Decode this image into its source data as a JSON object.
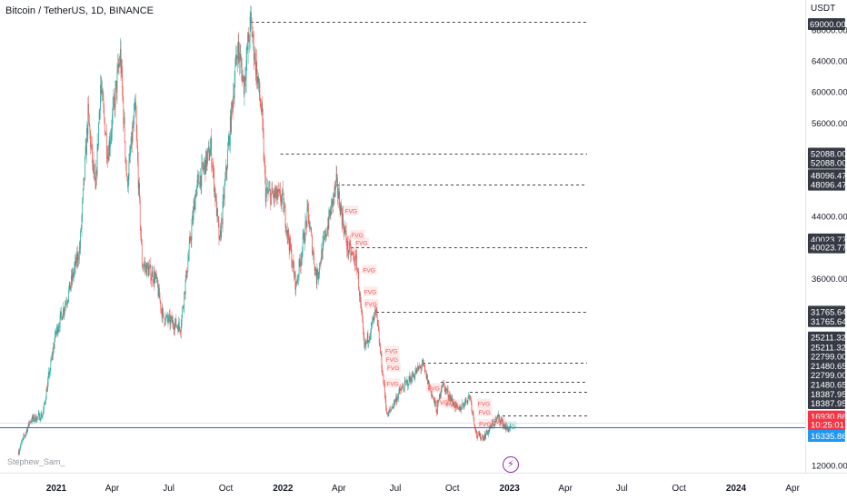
{
  "header": {
    "title": "Bitcoin / TetherUS, 1D, BINANCE",
    "currency": "USDT"
  },
  "watermark": "Stephew_Sam_",
  "colors": {
    "up": "#26a69a",
    "down": "#ef5350",
    "level_line": "#434651",
    "price_line": "#2962ff",
    "fvg_up": "#26a69a",
    "fvg_down": "#ef5350",
    "axis_text": "#131722",
    "badge_dark": "#363a45",
    "badge_red": "#f23645",
    "badge_blue": "#2196f3",
    "bg": "#ffffff"
  },
  "chart_data": {
    "type": "candlestick",
    "x_ticks": [
      {
        "label": "2021",
        "date": "2021-01-01",
        "bold": true
      },
      {
        "label": "Apr",
        "date": "2021-04-01",
        "bold": false
      },
      {
        "label": "Jul",
        "date": "2021-07-01",
        "bold": false
      },
      {
        "label": "Oct",
        "date": "2021-10-01",
        "bold": false
      },
      {
        "label": "2022",
        "date": "2022-01-01",
        "bold": true
      },
      {
        "label": "Apr",
        "date": "2022-04-01",
        "bold": false
      },
      {
        "label": "Jul",
        "date": "2022-07-01",
        "bold": false
      },
      {
        "label": "Oct",
        "date": "2022-10-01",
        "bold": false
      },
      {
        "label": "2023",
        "date": "2023-01-01",
        "bold": true
      },
      {
        "label": "Apr",
        "date": "2023-04-01",
        "bold": false
      },
      {
        "label": "Jul",
        "date": "2023-07-01",
        "bold": false
      },
      {
        "label": "Oct",
        "date": "2023-10-01",
        "bold": false
      },
      {
        "label": "2024",
        "date": "2024-01-01",
        "bold": true
      },
      {
        "label": "Apr",
        "date": "2024-04-01",
        "bold": false
      }
    ],
    "y_ticks": [
      "12000.00",
      "36000.00",
      "44000.00",
      "56000.00",
      "60000.00",
      "64000.00",
      "68000.00"
    ],
    "price_path": [
      [
        "2020-11-01",
        13800
      ],
      [
        "2020-11-20",
        17800
      ],
      [
        "2020-12-10",
        18500
      ],
      [
        "2020-12-31",
        29000
      ],
      [
        "2021-01-20",
        34000
      ],
      [
        "2021-02-08",
        40000
      ],
      [
        "2021-02-21",
        57000
      ],
      [
        "2021-03-05",
        47000
      ],
      [
        "2021-03-13",
        61000
      ],
      [
        "2021-03-25",
        52000
      ],
      [
        "2021-04-14",
        64800
      ],
      [
        "2021-04-25",
        48000
      ],
      [
        "2021-05-08",
        58000
      ],
      [
        "2021-05-19",
        38000
      ],
      [
        "2021-06-10",
        36000
      ],
      [
        "2021-06-22",
        31000
      ],
      [
        "2021-07-20",
        29800
      ],
      [
        "2021-08-14",
        47500
      ],
      [
        "2021-09-07",
        52800
      ],
      [
        "2021-09-21",
        40500
      ],
      [
        "2021-10-20",
        66000
      ],
      [
        "2021-10-30",
        61000
      ],
      [
        "2021-11-10",
        69000
      ],
      [
        "2021-11-28",
        57000
      ],
      [
        "2021-12-04",
        47000
      ],
      [
        "2021-12-31",
        46300
      ],
      [
        "2022-01-22",
        35000
      ],
      [
        "2022-02-10",
        44500
      ],
      [
        "2022-02-24",
        36000
      ],
      [
        "2022-03-28",
        48200
      ],
      [
        "2022-04-15",
        40000
      ],
      [
        "2022-04-30",
        38000
      ],
      [
        "2022-05-12",
        27000
      ],
      [
        "2022-05-31",
        31700
      ],
      [
        "2022-06-18",
        18300
      ],
      [
        "2022-07-08",
        21500
      ],
      [
        "2022-08-14",
        25000
      ],
      [
        "2022-09-06",
        19000
      ],
      [
        "2022-09-14",
        22600
      ],
      [
        "2022-10-10",
        19000
      ],
      [
        "2022-10-29",
        21000
      ],
      [
        "2022-11-09",
        15800
      ],
      [
        "2022-11-21",
        15700
      ],
      [
        "2022-12-14",
        18200
      ],
      [
        "2022-12-28",
        16600
      ],
      [
        "2023-01-02",
        16900
      ]
    ],
    "levels": [
      {
        "price": "69000.00",
        "start": "2021-11-10"
      },
      {
        "price": "52088.00",
        "start": "2021-12-28"
      },
      {
        "price": "48096.47",
        "start": "2022-03-28"
      },
      {
        "price": "40023.77",
        "start": "2022-04-20"
      },
      {
        "price": "31765.64",
        "start": "2022-05-31"
      },
      {
        "price": "25211.32",
        "start": "2022-08-14"
      },
      {
        "price": "22799.00",
        "start": "2022-09-12"
      },
      {
        "price": "21480.65",
        "start": "2022-10-29"
      },
      {
        "price": "18387.95",
        "start": "2022-12-12"
      }
    ],
    "fvg_labels": [
      {
        "text": "FVG",
        "date": "2022-04-08",
        "price": 44800,
        "dir": "down"
      },
      {
        "text": "FVG",
        "date": "2022-04-18",
        "price": 41700,
        "dir": "down"
      },
      {
        "text": "FVG",
        "date": "2022-04-25",
        "price": 40700,
        "dir": "down"
      },
      {
        "text": "FVG",
        "date": "2022-05-07",
        "price": 37200,
        "dir": "down"
      },
      {
        "text": "FVG",
        "date": "2022-05-09",
        "price": 34400,
        "dir": "down"
      },
      {
        "text": "FVG",
        "date": "2022-05-10",
        "price": 32800,
        "dir": "down"
      },
      {
        "text": "FVG",
        "date": "2022-06-12",
        "price": 26800,
        "dir": "down"
      },
      {
        "text": "FVG",
        "date": "2022-06-13",
        "price": 25700,
        "dir": "down"
      },
      {
        "text": "FVG",
        "date": "2022-06-15",
        "price": 24600,
        "dir": "down"
      },
      {
        "text": "FVG",
        "date": "2022-06-14",
        "price": 22600,
        "dir": "down"
      },
      {
        "text": "FVG",
        "date": "2022-08-19",
        "price": 22000,
        "dir": "down"
      },
      {
        "text": "FVG",
        "date": "2022-09-02",
        "price": 20200,
        "dir": "down"
      },
      {
        "text": "FVG",
        "date": "2022-09-18",
        "price": 19900,
        "dir": "down"
      },
      {
        "text": "FVG",
        "date": "2022-11-08",
        "price": 20000,
        "dir": "down"
      },
      {
        "text": "FVG",
        "date": "2022-11-09",
        "price": 18900,
        "dir": "down"
      },
      {
        "text": "FVG",
        "date": "2022-11-10",
        "price": 17400,
        "dir": "down"
      },
      {
        "text": "FVG",
        "date": "2022-12-01",
        "price": 17700,
        "dir": "down"
      },
      {
        "text": "FVG",
        "date": "2022-12-19",
        "price": 17100,
        "dir": "up"
      }
    ],
    "price_badges": [
      {
        "text": "52088.00",
        "price": 52088.0,
        "style": "dark"
      },
      {
        "text": "52088.00",
        "price": 50900,
        "style": "dark"
      },
      {
        "text": "48096.47",
        "price": 49300,
        "style": "dark"
      },
      {
        "text": "48096.47",
        "price": 48096.47,
        "style": "dark"
      },
      {
        "text": "40023.77",
        "price": 41050,
        "style": "dark"
      },
      {
        "text": "40023.77",
        "price": 40023.77,
        "style": "dark"
      },
      {
        "text": "31765.64",
        "price": 31765.64,
        "style": "dark"
      },
      {
        "text": "31765.64",
        "price": 30550,
        "style": "dark"
      },
      {
        "text": "25211.32",
        "price": 28450,
        "style": "dark"
      },
      {
        "text": "25211.32",
        "price": 27200,
        "style": "dark"
      },
      {
        "text": "22799.00",
        "price": 26000,
        "style": "dark"
      },
      {
        "text": "22799.00",
        "price": 23600,
        "style": "dark"
      },
      {
        "text": "21480.65",
        "price": 24800,
        "style": "dark"
      },
      {
        "text": "21480.65",
        "price": 22400,
        "style": "dark"
      },
      {
        "text": "18387.95",
        "price": 21200,
        "style": "dark"
      },
      {
        "text": "18387.95",
        "price": 20000,
        "style": "dark"
      },
      {
        "text": "16930.86",
        "price": 18300,
        "style": "red"
      },
      {
        "text": "10:25:01",
        "price": 17250,
        "style": "red"
      },
      {
        "text": "16335.86",
        "price": 15800,
        "style": "blue"
      }
    ],
    "current_price": 16930.86,
    "last_price": 16335.86,
    "grid": false
  }
}
